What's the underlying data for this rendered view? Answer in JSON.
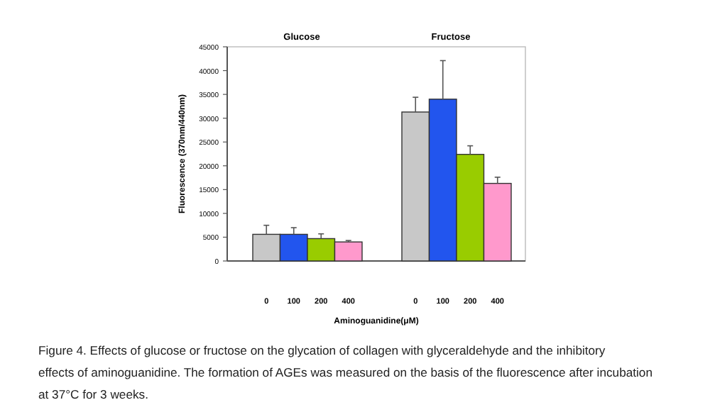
{
  "chart_data": [
    {
      "type": "bar",
      "title": "Glucose",
      "ylabel": "Fluorescence (370nm/440nm)",
      "xlabel": "Aminoguanidine(μM)",
      "categories": [
        "0",
        "100",
        "200",
        "400"
      ],
      "values": [
        5600,
        5600,
        4700,
        4000
      ],
      "errors": [
        [
          5600,
          7500
        ],
        [
          5600,
          7000
        ],
        [
          4700,
          5700
        ],
        [
          4000,
          4300
        ]
      ],
      "colors": [
        "#c8c8c8",
        "#2255ee",
        "#99cc00",
        "#ff99cc"
      ],
      "ylim": [
        0,
        45000
      ],
      "yticks": [
        0,
        5000,
        10000,
        15000,
        20000,
        25000,
        30000,
        35000,
        40000,
        45000
      ],
      "annotations": [
        "Figure 4. Effects of glucose or fructose on the glycation of collagen with glyceraldehyde and the inhibitory effects of aminoguanidine. The formation of AGEs was measured on the basis of the fluorescence after incubation at 37°C for 3 weeks."
      ]
    },
    {
      "type": "bar",
      "title": "Fructose",
      "categories": [
        "0",
        "100",
        "200",
        "400"
      ],
      "values": [
        31300,
        34000,
        22400,
        16300
      ],
      "errors": [
        [
          31300,
          34400
        ],
        [
          34000,
          42100
        ],
        [
          22400,
          24200
        ],
        [
          16300,
          17600
        ]
      ],
      "colors": [
        "#c8c8c8",
        "#2255ee",
        "#99cc00",
        "#ff99cc"
      ],
      "ylim": [
        0,
        45000
      ],
      "tick_labels": "x"
    }
  ]
}
